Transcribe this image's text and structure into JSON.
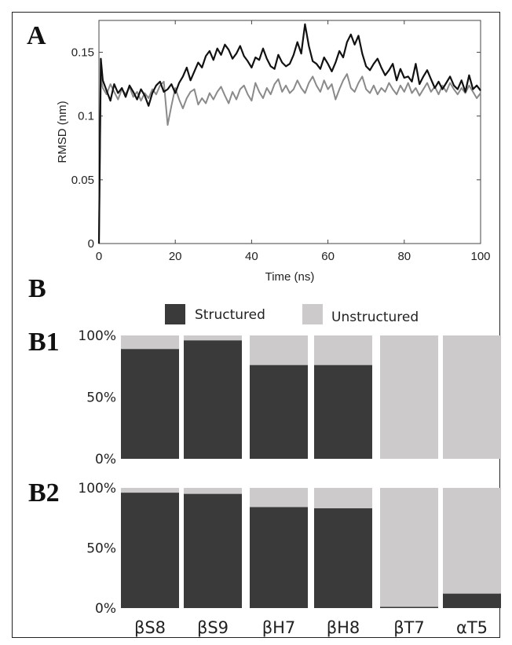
{
  "chart_data": [
    {
      "panel": "A",
      "type": "line",
      "xlabel": "Time (ns)",
      "ylabel": "RMSD (nm)",
      "xlim": [
        0,
        100
      ],
      "ylim": [
        0,
        0.175
      ],
      "xticks": [
        0,
        20,
        40,
        60,
        80,
        100
      ],
      "yticks": [
        0,
        0.05,
        0.1,
        0.15
      ],
      "ytick_labels": [
        "0",
        "0.05",
        "0.1",
        "0.15"
      ],
      "grid": false,
      "series": [
        {
          "color": "#111111",
          "x": [
            0,
            0.5,
            1,
            2,
            3,
            4,
            5,
            6,
            7,
            8,
            9,
            10,
            11,
            12,
            13,
            14,
            15,
            16,
            17,
            18,
            19,
            20,
            21,
            22,
            23,
            24,
            25,
            26,
            27,
            28,
            29,
            30,
            31,
            32,
            33,
            34,
            35,
            36,
            37,
            38,
            39,
            40,
            41,
            42,
            43,
            44,
            45,
            46,
            47,
            48,
            49,
            50,
            51,
            52,
            53,
            54,
            55,
            56,
            57,
            58,
            59,
            60,
            61,
            62,
            63,
            64,
            65,
            66,
            67,
            68,
            69,
            70,
            71,
            72,
            73,
            74,
            75,
            76,
            77,
            78,
            79,
            80,
            81,
            82,
            83,
            84,
            85,
            86,
            87,
            88,
            89,
            90,
            91,
            92,
            93,
            94,
            95,
            96,
            97,
            98,
            99,
            100
          ],
          "y": [
            0.0,
            0.145,
            0.128,
            0.12,
            0.112,
            0.125,
            0.118,
            0.122,
            0.115,
            0.124,
            0.119,
            0.113,
            0.121,
            0.116,
            0.108,
            0.118,
            0.124,
            0.127,
            0.119,
            0.121,
            0.125,
            0.118,
            0.126,
            0.131,
            0.138,
            0.128,
            0.135,
            0.142,
            0.138,
            0.147,
            0.151,
            0.144,
            0.153,
            0.148,
            0.156,
            0.152,
            0.145,
            0.149,
            0.155,
            0.147,
            0.143,
            0.138,
            0.146,
            0.144,
            0.153,
            0.145,
            0.139,
            0.137,
            0.148,
            0.142,
            0.139,
            0.141,
            0.148,
            0.158,
            0.149,
            0.172,
            0.155,
            0.143,
            0.141,
            0.137,
            0.146,
            0.141,
            0.135,
            0.142,
            0.151,
            0.146,
            0.158,
            0.164,
            0.156,
            0.163,
            0.149,
            0.139,
            0.136,
            0.141,
            0.145,
            0.138,
            0.132,
            0.136,
            0.141,
            0.128,
            0.137,
            0.13,
            0.131,
            0.127,
            0.141,
            0.125,
            0.131,
            0.136,
            0.129,
            0.122,
            0.127,
            0.121,
            0.126,
            0.131,
            0.124,
            0.121,
            0.128,
            0.119,
            0.132,
            0.121,
            0.124,
            0.12
          ]
        },
        {
          "color": "#8a8a8a",
          "x": [
            0,
            0.5,
            1,
            2,
            3,
            4,
            5,
            6,
            7,
            8,
            9,
            10,
            11,
            12,
            13,
            14,
            15,
            16,
            17,
            18,
            19,
            20,
            21,
            22,
            23,
            24,
            25,
            26,
            27,
            28,
            29,
            30,
            31,
            32,
            33,
            34,
            35,
            36,
            37,
            38,
            39,
            40,
            41,
            42,
            43,
            44,
            45,
            46,
            47,
            48,
            49,
            50,
            51,
            52,
            53,
            54,
            55,
            56,
            57,
            58,
            59,
            60,
            61,
            62,
            63,
            64,
            65,
            66,
            67,
            68,
            69,
            70,
            71,
            72,
            73,
            74,
            75,
            76,
            77,
            78,
            79,
            80,
            81,
            82,
            83,
            84,
            85,
            86,
            87,
            88,
            89,
            90,
            91,
            92,
            93,
            94,
            95,
            96,
            97,
            98,
            99,
            100
          ],
          "y": [
            0.0,
            0.13,
            0.122,
            0.117,
            0.125,
            0.119,
            0.113,
            0.121,
            0.117,
            0.123,
            0.115,
            0.119,
            0.112,
            0.118,
            0.114,
            0.121,
            0.117,
            0.124,
            0.127,
            0.093,
            0.108,
            0.122,
            0.113,
            0.106,
            0.114,
            0.119,
            0.121,
            0.109,
            0.114,
            0.11,
            0.118,
            0.113,
            0.119,
            0.123,
            0.116,
            0.11,
            0.119,
            0.113,
            0.121,
            0.124,
            0.117,
            0.112,
            0.126,
            0.119,
            0.114,
            0.122,
            0.117,
            0.125,
            0.129,
            0.119,
            0.124,
            0.118,
            0.121,
            0.128,
            0.122,
            0.118,
            0.126,
            0.131,
            0.124,
            0.119,
            0.128,
            0.121,
            0.125,
            0.113,
            0.121,
            0.128,
            0.133,
            0.122,
            0.119,
            0.126,
            0.131,
            0.121,
            0.118,
            0.124,
            0.117,
            0.122,
            0.119,
            0.126,
            0.121,
            0.117,
            0.124,
            0.119,
            0.126,
            0.118,
            0.122,
            0.116,
            0.121,
            0.126,
            0.119,
            0.123,
            0.117,
            0.124,
            0.119,
            0.126,
            0.121,
            0.117,
            0.122,
            0.118,
            0.124,
            0.119,
            0.114,
            0.118
          ]
        }
      ]
    },
    {
      "panel": "B1",
      "type": "bar",
      "stacked": true,
      "categories": [
        "βS8",
        "βS9",
        "βH7",
        "βH8",
        "βT7",
        "αT5"
      ],
      "yticks": [
        "0%",
        "50%",
        "100%"
      ],
      "ylim": [
        0,
        100
      ],
      "series": [
        {
          "name": "Structured",
          "color": "#3a3a3a",
          "values": [
            89,
            96,
            76,
            76,
            0,
            0
          ]
        },
        {
          "name": "Unstructured",
          "color": "#cccaca",
          "values": [
            11,
            4,
            24,
            24,
            100,
            100
          ]
        }
      ]
    },
    {
      "panel": "B2",
      "type": "bar",
      "stacked": true,
      "categories": [
        "βS8",
        "βS9",
        "βH7",
        "βH8",
        "βT7",
        "αT5"
      ],
      "yticks": [
        "0%",
        "50%",
        "100%"
      ],
      "ylim": [
        0,
        100
      ],
      "series": [
        {
          "name": "Structured",
          "color": "#3a3a3a",
          "values": [
            96,
            95,
            84,
            83,
            1,
            12
          ]
        },
        {
          "name": "Unstructured",
          "color": "#cccaca",
          "values": [
            4,
            5,
            16,
            17,
            99,
            88
          ]
        }
      ]
    }
  ],
  "panels": {
    "a": "A",
    "b": "B",
    "b1": "B1",
    "b2": "B2"
  },
  "legend": [
    {
      "label": "Structured",
      "color": "#3a3a3a"
    },
    {
      "label": "Unstructured",
      "color": "#cccaca"
    }
  ],
  "colors": {
    "background": "#ffffff",
    "frame": "#222222"
  }
}
